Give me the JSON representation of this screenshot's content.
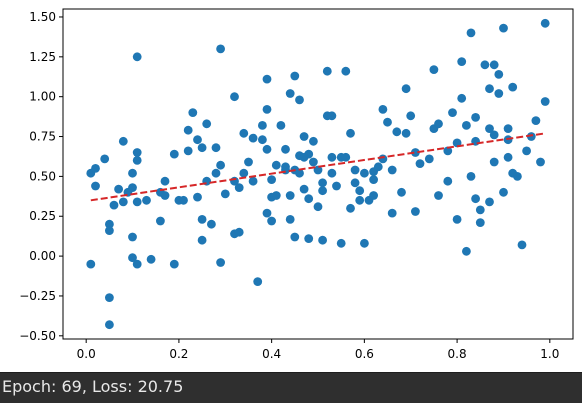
{
  "status": {
    "text": "Epoch: 69, Loss: 20.75"
  },
  "chart_data": {
    "type": "scatter",
    "title": "",
    "xlabel": "",
    "ylabel": "",
    "xlim": [
      -0.05,
      1.05
    ],
    "ylim": [
      -0.52,
      1.55
    ],
    "xticks": [
      0.0,
      0.2,
      0.4,
      0.6,
      0.8,
      1.0
    ],
    "xtick_labels": [
      "0.0",
      "0.2",
      "0.4",
      "0.6",
      "0.8",
      "1.0"
    ],
    "yticks": [
      -0.5,
      -0.25,
      0.0,
      0.25,
      0.5,
      0.75,
      1.0,
      1.25,
      1.5
    ],
    "ytick_labels": [
      "−0.50",
      "−0.25",
      "0.00",
      "0.25",
      "0.50",
      "0.75",
      "1.00",
      "1.25",
      "1.50"
    ],
    "grid": false,
    "colors": {
      "points": "#1f77b4",
      "fit_line": "#d62728",
      "frame": "#000000"
    },
    "fit_line": {
      "style": "dashed",
      "x": [
        0.01,
        0.99
      ],
      "y": [
        0.35,
        0.77
      ]
    },
    "points": [
      [
        0.01,
        0.52
      ],
      [
        0.01,
        -0.05
      ],
      [
        0.02,
        0.44
      ],
      [
        0.02,
        0.55
      ],
      [
        0.04,
        0.61
      ],
      [
        0.05,
        0.2
      ],
      [
        0.05,
        0.16
      ],
      [
        0.05,
        -0.26
      ],
      [
        0.05,
        -0.43
      ],
      [
        0.07,
        0.42
      ],
      [
        0.08,
        0.72
      ],
      [
        0.08,
        0.34
      ],
      [
        0.09,
        0.4
      ],
      [
        0.1,
        0.52
      ],
      [
        0.1,
        0.43
      ],
      [
        0.1,
        0.12
      ],
      [
        0.1,
        -0.01
      ],
      [
        0.11,
        0.6
      ],
      [
        0.11,
        0.65
      ],
      [
        0.11,
        0.34
      ],
      [
        0.11,
        -0.05
      ],
      [
        0.11,
        1.25
      ],
      [
        0.14,
        -0.02
      ],
      [
        0.16,
        0.4
      ],
      [
        0.16,
        0.22
      ],
      [
        0.17,
        0.47
      ],
      [
        0.17,
        0.38
      ],
      [
        0.19,
        0.64
      ],
      [
        0.19,
        -0.05
      ],
      [
        0.2,
        0.35
      ],
      [
        0.22,
        0.79
      ],
      [
        0.22,
        0.66
      ],
      [
        0.23,
        0.9
      ],
      [
        0.24,
        0.73
      ],
      [
        0.24,
        0.37
      ],
      [
        0.25,
        0.68
      ],
      [
        0.25,
        0.23
      ],
      [
        0.25,
        0.1
      ],
      [
        0.26,
        0.47
      ],
      [
        0.26,
        0.83
      ],
      [
        0.27,
        0.2
      ],
      [
        0.28,
        0.68
      ],
      [
        0.28,
        0.52
      ],
      [
        0.29,
        0.57
      ],
      [
        0.29,
        1.3
      ],
      [
        0.29,
        -0.04
      ],
      [
        0.3,
        0.39
      ],
      [
        0.32,
        1.0
      ],
      [
        0.32,
        0.14
      ],
      [
        0.32,
        0.47
      ],
      [
        0.33,
        0.43
      ],
      [
        0.33,
        0.15
      ],
      [
        0.34,
        0.77
      ],
      [
        0.35,
        0.59
      ],
      [
        0.36,
        0.74
      ],
      [
        0.37,
        -0.16
      ],
      [
        0.38,
        0.82
      ],
      [
        0.38,
        0.73
      ],
      [
        0.39,
        1.11
      ],
      [
        0.39,
        0.67
      ],
      [
        0.39,
        0.27
      ],
      [
        0.4,
        0.37
      ],
      [
        0.4,
        0.22
      ],
      [
        0.4,
        0.48
      ],
      [
        0.41,
        0.57
      ],
      [
        0.42,
        0.82
      ],
      [
        0.43,
        0.54
      ],
      [
        0.44,
        1.02
      ],
      [
        0.44,
        0.38
      ],
      [
        0.45,
        0.54
      ],
      [
        0.45,
        1.13
      ],
      [
        0.45,
        0.12
      ],
      [
        0.46,
        0.63
      ],
      [
        0.46,
        0.52
      ],
      [
        0.46,
        0.98
      ],
      [
        0.47,
        0.75
      ],
      [
        0.48,
        0.36
      ],
      [
        0.48,
        0.64
      ],
      [
        0.48,
        0.11
      ],
      [
        0.49,
        0.59
      ],
      [
        0.49,
        0.72
      ],
      [
        0.5,
        0.54
      ],
      [
        0.5,
        0.31
      ],
      [
        0.51,
        0.46
      ],
      [
        0.51,
        0.41
      ],
      [
        0.51,
        0.1
      ],
      [
        0.52,
        0.88
      ],
      [
        0.52,
        1.16
      ],
      [
        0.53,
        0.62
      ],
      [
        0.53,
        0.52
      ],
      [
        0.54,
        0.44
      ],
      [
        0.55,
        0.62
      ],
      [
        0.55,
        0.08
      ],
      [
        0.56,
        1.16
      ],
      [
        0.57,
        0.77
      ],
      [
        0.58,
        0.46
      ],
      [
        0.59,
        0.35
      ],
      [
        0.59,
        0.41
      ],
      [
        0.6,
        0.52
      ],
      [
        0.6,
        0.08
      ],
      [
        0.61,
        0.35
      ],
      [
        0.62,
        0.53
      ],
      [
        0.63,
        0.56
      ],
      [
        0.64,
        0.92
      ],
      [
        0.64,
        0.61
      ],
      [
        0.65,
        0.84
      ],
      [
        0.66,
        0.27
      ],
      [
        0.66,
        0.54
      ],
      [
        0.68,
        0.4
      ],
      [
        0.69,
        0.77
      ],
      [
        0.69,
        1.05
      ],
      [
        0.7,
        0.88
      ],
      [
        0.71,
        0.65
      ],
      [
        0.71,
        0.28
      ],
      [
        0.74,
        0.61
      ],
      [
        0.75,
        1.17
      ],
      [
        0.75,
        0.8
      ],
      [
        0.76,
        0.38
      ],
      [
        0.76,
        0.83
      ],
      [
        0.78,
        0.66
      ],
      [
        0.79,
        0.9
      ],
      [
        0.8,
        0.71
      ],
      [
        0.8,
        0.23
      ],
      [
        0.81,
        0.99
      ],
      [
        0.81,
        1.22
      ],
      [
        0.82,
        0.03
      ],
      [
        0.82,
        0.82
      ],
      [
        0.83,
        1.4
      ],
      [
        0.83,
        0.5
      ],
      [
        0.84,
        0.72
      ],
      [
        0.84,
        0.87
      ],
      [
        0.85,
        0.29
      ],
      [
        0.85,
        0.21
      ],
      [
        0.87,
        0.34
      ],
      [
        0.87,
        0.8
      ],
      [
        0.88,
        0.76
      ],
      [
        0.88,
        0.59
      ],
      [
        0.89,
        1.14
      ],
      [
        0.89,
        1.02
      ],
      [
        0.9,
        1.43
      ],
      [
        0.9,
        0.4
      ],
      [
        0.91,
        0.73
      ],
      [
        0.91,
        0.8
      ],
      [
        0.92,
        0.52
      ],
      [
        0.94,
        0.07
      ],
      [
        0.95,
        0.66
      ],
      [
        0.96,
        0.75
      ],
      [
        0.97,
        0.85
      ],
      [
        0.98,
        0.59
      ],
      [
        0.99,
        1.46
      ],
      [
        0.99,
        0.97
      ],
      [
        0.87,
        1.05
      ],
      [
        0.88,
        1.2
      ],
      [
        0.86,
        1.2
      ],
      [
        0.84,
        0.36
      ],
      [
        0.72,
        0.58
      ],
      [
        0.62,
        0.48
      ],
      [
        0.47,
        0.42
      ],
      [
        0.43,
        0.56
      ],
      [
        0.56,
        0.62
      ],
      [
        0.57,
        0.3
      ],
      [
        0.36,
        0.47
      ],
      [
        0.67,
        0.78
      ],
      [
        0.92,
        1.06
      ],
      [
        0.93,
        0.5
      ],
      [
        0.13,
        0.35
      ],
      [
        0.06,
        0.32
      ],
      [
        0.47,
        0.62
      ],
      [
        0.53,
        0.88
      ],
      [
        0.21,
        0.35
      ],
      [
        0.34,
        0.52
      ],
      [
        0.44,
        0.23
      ],
      [
        0.39,
        0.92
      ],
      [
        0.43,
        0.67
      ],
      [
        0.41,
        0.38
      ],
      [
        0.58,
        0.54
      ],
      [
        0.62,
        0.38
      ],
      [
        0.78,
        0.47
      ],
      [
        0.91,
        0.62
      ]
    ]
  }
}
